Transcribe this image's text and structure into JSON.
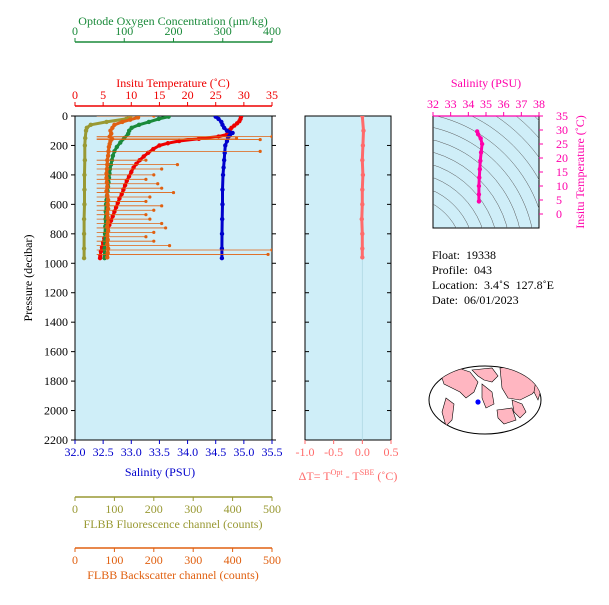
{
  "chart_data": [
    {
      "type": "line",
      "panel": "profile",
      "y_axis": {
        "label": "Pressure (decibar)",
        "range": [
          2200,
          0
        ],
        "ticks": [
          0,
          200,
          400,
          600,
          800,
          1000,
          1200,
          1400,
          1600,
          1800,
          2000,
          2200
        ],
        "reversed": true
      },
      "axes_top": [
        {
          "key": "oxy",
          "label": "Optode Oxygen Concentration (μm/kg)",
          "range": [
            0,
            400
          ],
          "ticks": [
            0,
            100,
            200,
            300,
            400
          ],
          "color": "#1a8a3a"
        },
        {
          "key": "temp",
          "label": "Insitu Temperature (˚C)",
          "range": [
            0,
            35
          ],
          "ticks": [
            0,
            5,
            10,
            15,
            20,
            25,
            30,
            35
          ],
          "color": "#ee0000"
        }
      ],
      "axes_bottom": [
        {
          "key": "sal",
          "label": "Salinity (PSU)",
          "range": [
            32.0,
            35.5
          ],
          "ticks": [
            "32.0",
            "32.5",
            "33.0",
            "33.5",
            "34.0",
            "34.5",
            "35.0",
            "35.5"
          ],
          "color": "#0000cc"
        },
        {
          "key": "fl",
          "label": "FLBB Fluorescence channel (counts)",
          "range": [
            0,
            500
          ],
          "ticks": [
            0,
            100,
            200,
            300,
            400,
            500
          ],
          "color": "#999933"
        },
        {
          "key": "bb",
          "label": "FLBB Backscatter channel (counts)",
          "range": [
            0,
            500
          ],
          "ticks": [
            0,
            100,
            200,
            300,
            400,
            500
          ],
          "color": "#e06010"
        }
      ],
      "grid": false,
      "series": [
        {
          "axis": "temp",
          "color": "#ee0000",
          "points": [
            [
              29.5,
              5
            ],
            [
              29.4,
              20
            ],
            [
              29.2,
              35
            ],
            [
              28.8,
              50
            ],
            [
              28.3,
              65
            ],
            [
              27.8,
              80
            ],
            [
              27.5,
              95
            ],
            [
              27.4,
              110
            ],
            [
              27,
              125
            ],
            [
              25.5,
              140
            ],
            [
              22,
              155
            ],
            [
              18.5,
              170
            ],
            [
              16.5,
              185
            ],
            [
              15,
              200
            ],
            [
              13.9,
              225
            ],
            [
              13,
              250
            ],
            [
              12.2,
              275
            ],
            [
              11.5,
              300
            ],
            [
              10.9,
              325
            ],
            [
              10.4,
              350
            ],
            [
              10,
              380
            ],
            [
              9.6,
              410
            ],
            [
              9.2,
              440
            ],
            [
              8.9,
              470
            ],
            [
              8.6,
              500
            ],
            [
              8.3,
              530
            ],
            [
              7.9,
              560
            ],
            [
              7.6,
              590
            ],
            [
              7.3,
              620
            ],
            [
              7,
              650
            ],
            [
              6.7,
              680
            ],
            [
              6.4,
              710
            ],
            [
              6.1,
              740
            ],
            [
              5.8,
              770
            ],
            [
              5.5,
              800
            ],
            [
              5.2,
              830
            ],
            [
              5,
              860
            ],
            [
              4.8,
              890
            ],
            [
              4.6,
              920
            ],
            [
              4.5,
              950
            ],
            [
              4.45,
              965
            ]
          ]
        },
        {
          "axis": "sal",
          "color": "#0000cc",
          "points": [
            [
              34.5,
              5
            ],
            [
              34.55,
              20
            ],
            [
              34.6,
              40
            ],
            [
              34.62,
              60
            ],
            [
              34.65,
              80
            ],
            [
              34.7,
              100
            ],
            [
              34.8,
              115
            ],
            [
              34.75,
              130
            ],
            [
              34.72,
              145
            ],
            [
              34.7,
              170
            ],
            [
              34.67,
              200
            ],
            [
              34.66,
              250
            ],
            [
              34.65,
              300
            ],
            [
              34.64,
              350
            ],
            [
              34.63,
              400
            ],
            [
              34.62,
              500
            ],
            [
              34.62,
              600
            ],
            [
              34.615,
              700
            ],
            [
              34.612,
              800
            ],
            [
              34.61,
              900
            ],
            [
              34.61,
              965
            ]
          ]
        },
        {
          "axis": "oxy",
          "color": "#1a8a3a",
          "points": [
            [
              190,
              5
            ],
            [
              170,
              20
            ],
            [
              150,
              40
            ],
            [
              130,
              60
            ],
            [
              115,
              80
            ],
            [
              110,
              100
            ],
            [
              108,
              120
            ],
            [
              100,
              150
            ],
            [
              92,
              180
            ],
            [
              85,
              210
            ],
            [
              80,
              240
            ],
            [
              77,
              270
            ],
            [
              75,
              300
            ],
            [
              73,
              330
            ],
            [
              71,
              360
            ],
            [
              70,
              390
            ],
            [
              69,
              420
            ],
            [
              68,
              450
            ],
            [
              67,
              480
            ],
            [
              66,
              510
            ],
            [
              65,
              540
            ],
            [
              64,
              570
            ],
            [
              63,
              600
            ],
            [
              62.5,
              650
            ],
            [
              62,
              700
            ],
            [
              61.5,
              750
            ],
            [
              61,
              800
            ],
            [
              60.5,
              850
            ],
            [
              60,
              900
            ],
            [
              60,
              965
            ]
          ]
        },
        {
          "axis": "fl",
          "color": "#999933",
          "points": [
            [
              140,
              5
            ],
            [
              130,
              20
            ],
            [
              80,
              40
            ],
            [
              40,
              60
            ],
            [
              30,
              80
            ],
            [
              28,
              100
            ],
            [
              26,
              150
            ],
            [
              25,
              200
            ],
            [
              25,
              300
            ],
            [
              24,
              400
            ],
            [
              24,
              500
            ],
            [
              24,
              600
            ],
            [
              23,
              700
            ],
            [
              23,
              800
            ],
            [
              23,
              900
            ],
            [
              23,
              965
            ]
          ]
        },
        {
          "axis": "bb",
          "color": "#e06010",
          "points": [
            [
              160,
              10
            ],
            [
              140,
              25
            ],
            [
              120,
              40
            ],
            [
              100,
              60
            ],
            [
              95,
              80
            ],
            [
              90,
              100
            ],
            [
              92,
              120
            ],
            [
              88,
              140
            ],
            [
              94,
              155
            ],
            [
              90,
              170
            ],
            [
              88,
              190
            ],
            [
              86,
              210
            ],
            [
              85,
              240
            ],
            [
              84,
              270
            ],
            [
              82,
              300
            ],
            [
              82,
              330
            ],
            [
              81,
              360
            ],
            [
              80,
              390
            ],
            [
              80,
              420
            ],
            [
              81,
              450
            ],
            [
              82,
              480
            ],
            [
              80,
              510
            ],
            [
              82,
              540
            ],
            [
              84,
              570
            ],
            [
              83,
              600
            ],
            [
              84,
              630
            ],
            [
              82,
              660
            ],
            [
              83,
              690
            ],
            [
              84,
              720
            ],
            [
              82,
              750
            ],
            [
              84,
              780
            ],
            [
              82,
              810
            ],
            [
              83,
              840
            ],
            [
              82,
              870
            ],
            [
              84,
              900
            ],
            [
              83,
              930
            ],
            [
              82,
              960
            ]
          ],
          "spikes": [
            [
              0,
              55,
              200
            ],
            [
              140,
              55,
              500
            ],
            [
              150,
              55,
              410
            ],
            [
              160,
              55,
              470
            ],
            [
              240,
              55,
              470
            ],
            [
              300,
              55,
              180
            ],
            [
              330,
              55,
              260
            ],
            [
              360,
              55,
              220
            ],
            [
              400,
              55,
              200
            ],
            [
              430,
              55,
              180
            ],
            [
              460,
              55,
              210
            ],
            [
              490,
              55,
              220
            ],
            [
              520,
              55,
              250
            ],
            [
              550,
              55,
              190
            ],
            [
              580,
              55,
              180
            ],
            [
              610,
              55,
              220
            ],
            [
              640,
              55,
              200
            ],
            [
              670,
              55,
              180
            ],
            [
              700,
              55,
              190
            ],
            [
              730,
              55,
              220
            ],
            [
              760,
              55,
              230
            ],
            [
              790,
              55,
              200
            ],
            [
              820,
              55,
              180
            ],
            [
              850,
              55,
              200
            ],
            [
              880,
              55,
              240
            ],
            [
              910,
              55,
              500
            ],
            [
              940,
              55,
              490
            ]
          ]
        }
      ]
    },
    {
      "type": "scatter",
      "panel": "delta-t",
      "xlabel": "ΔT= T",
      "xlabel_sup1": "Opt",
      "xlabel_mid": " - T",
      "xlabel_sup2": "SBE",
      "xlabel_end": " (˚C)",
      "xlim": [
        -1.0,
        0.5
      ],
      "ticks": [
        "-1.0",
        "-0.5",
        "0.0",
        "0.5"
      ],
      "color": "#ff6a6a",
      "points": [
        [
          0.0,
          0
        ],
        [
          0.02,
          100
        ],
        [
          0.01,
          200
        ],
        [
          0.0,
          300
        ],
        [
          0.01,
          400
        ],
        [
          0.0,
          500
        ],
        [
          0.0,
          600
        ],
        [
          -0.01,
          700
        ],
        [
          0.0,
          800
        ],
        [
          0.0,
          900
        ],
        [
          0.0,
          960
        ]
      ]
    },
    {
      "type": "scatter",
      "panel": "ts-diagram",
      "xlabel": "Salinity (PSU)",
      "ylabel": "Insitu Temperature (˚C)",
      "xlim": [
        32,
        38
      ],
      "ylim": [
        -5,
        35
      ],
      "xticks": [
        32,
        33,
        34,
        35,
        36,
        37,
        38
      ],
      "yticks": [
        0,
        5,
        10,
        15,
        20,
        25,
        30,
        35
      ],
      "color": "#ff00aa",
      "points": [
        [
          34.6,
          4.5
        ],
        [
          34.6,
          7
        ],
        [
          34.6,
          10
        ],
        [
          34.62,
          13
        ],
        [
          34.65,
          16
        ],
        [
          34.68,
          19
        ],
        [
          34.72,
          22
        ],
        [
          34.78,
          25
        ],
        [
          34.7,
          27
        ],
        [
          34.55,
          28.5
        ],
        [
          34.5,
          29.5
        ]
      ]
    }
  ],
  "info": {
    "float": "Float:  19338",
    "profile": "Profile:  043",
    "location": "Location:  3.4˚S  127.8˚E",
    "date": "Date:  06/01/2023"
  },
  "map": {
    "ocean_color": "#ffffff",
    "land_color": "#ffb6c1",
    "marker_color": "#0000ff"
  }
}
